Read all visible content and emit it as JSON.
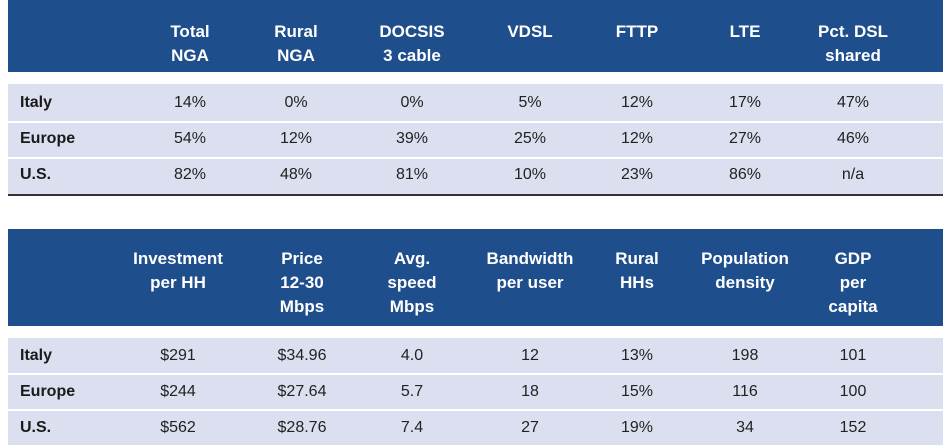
{
  "colors": {
    "header_bg": "#1f4e8c",
    "row_bg": "#dcdff0",
    "header_text": "#ffffff"
  },
  "tables": [
    {
      "columns": [
        "Total\nNGA",
        "Rural\nNGA",
        "DOCSIS\n3 cable",
        "VDSL",
        "FTTP",
        "LTE",
        "Pct. DSL\nshared"
      ],
      "rows": [
        {
          "label": "Italy",
          "values": [
            "14%",
            "0%",
            "0%",
            "5%",
            "12%",
            "17%",
            "47%"
          ]
        },
        {
          "label": "Europe",
          "values": [
            "54%",
            "12%",
            "39%",
            "25%",
            "12%",
            "27%",
            "46%"
          ]
        },
        {
          "label": "U.S.",
          "values": [
            "82%",
            "48%",
            "81%",
            "10%",
            "23%",
            "86%",
            "n/a"
          ]
        }
      ]
    },
    {
      "columns": [
        "Investment\nper HH",
        "Price\n12-30\nMbps",
        "Avg.\nspeed\nMbps",
        "Bandwidth\nper user",
        "Rural\nHHs",
        "Population\ndensity",
        "GDP\nper\ncapita"
      ],
      "rows": [
        {
          "label": "Italy",
          "values": [
            "$291",
            "$34.96",
            "4.0",
            "12",
            "13%",
            "198",
            "101"
          ]
        },
        {
          "label": "Europe",
          "values": [
            "$244",
            "$27.64",
            "5.7",
            "18",
            "15%",
            "116",
            "100"
          ]
        },
        {
          "label": "U.S.",
          "values": [
            "$562",
            "$28.76",
            "7.4",
            "27",
            "19%",
            "34",
            "152"
          ]
        }
      ]
    }
  ]
}
